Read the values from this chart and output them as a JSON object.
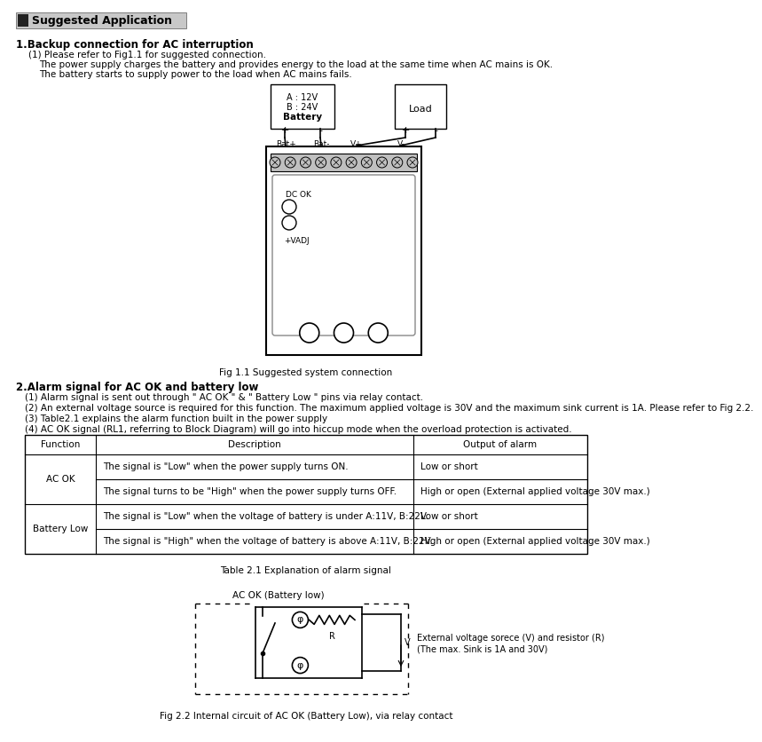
{
  "title": "Suggested Application",
  "section1_title": "1.Backup connection for AC interruption",
  "section1_lines": [
    "(1) Please refer to Fig1.1 for suggested connection.",
    "The power supply charges the battery and provides energy to the load at the same time when AC mains is OK.",
    "The battery starts to supply power to the load when AC mains fails."
  ],
  "fig1_caption": "Fig 1.1 Suggested system connection",
  "section2_title": "2.Alarm signal for AC OK and battery low",
  "section2_lines": [
    "(1) Alarm signal is sent out through \" AC OK \" & \" Battery Low \" pins via relay contact.",
    "(2) An external voltage source is required for this function. The maximum applied voltage is 30V and the maximum sink current is 1A. Please refer to Fig 2.2.",
    "(3) Table2.1 explains the alarm function built in the power supply",
    "(4) AC OK signal (RL1, referring to Block Diagram) will go into hiccup mode when the overload protection is activated."
  ],
  "table_headers": [
    "Function",
    "Description",
    "Output of alarm"
  ],
  "table_rows": [
    [
      "AC OK",
      "The signal is \"Low\" when the power supply turns ON.",
      "Low or short"
    ],
    [
      "",
      "The signal turns to be \"High\" when the power supply turns OFF.",
      "High or open (External applied voltage 30V max.)"
    ],
    [
      "Battery Low",
      "The signal is \"Low\" when the voltage of battery is under A:11V, B:22V.",
      "Low or short"
    ],
    [
      "",
      "The signal is \"High\" when the voltage of battery is above A:11V, B:22V.",
      "High or open (External applied voltage 30V max.)"
    ]
  ],
  "table_caption": "Table 2.1 Explanation of alarm signal",
  "fig2_caption": "Fig 2.2 Internal circuit of AC OK (Battery Low), via relay contact",
  "fig2_label": "AC OK (Battery low)",
  "fig2_annotation_line1": "External voltage sorece (V) and resistor (R)",
  "fig2_annotation_line2": "(The max. Sink is 1A and 30V)",
  "battery_label_a": "A : 12V",
  "battery_label_b": "B : 24V",
  "battery_label_c": "Battery",
  "load_label": "Load",
  "bg_color": "#ffffff"
}
